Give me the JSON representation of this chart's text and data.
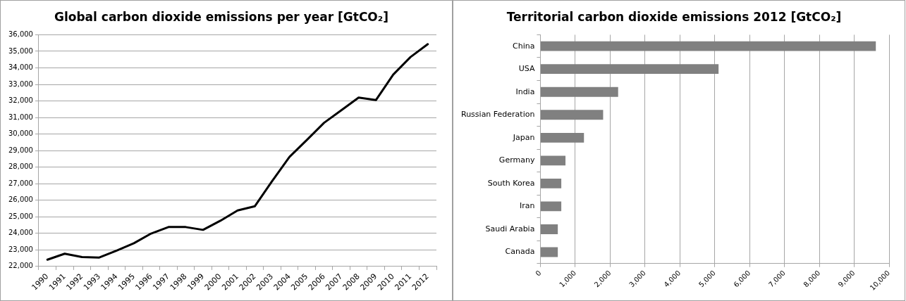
{
  "chart_data": [
    {
      "type": "line",
      "title": "Global carbon dioxide emissions per year [GtCO₂]",
      "categories": [
        "1990",
        "1991",
        "1992",
        "1993",
        "1994",
        "1995",
        "1996",
        "1997",
        "1998",
        "1999",
        "2000",
        "2001",
        "2002",
        "2003",
        "2004",
        "2005",
        "2006",
        "2007",
        "2008",
        "2009",
        "2010",
        "2011",
        "2012"
      ],
      "series": [
        {
          "color": "#000000",
          "values": [
            22410,
            22770,
            22570,
            22540,
            22960,
            23400,
            23990,
            24380,
            24380,
            24210,
            24760,
            25380,
            25640,
            27160,
            28620,
            29640,
            30680,
            31440,
            32200,
            32050,
            33590,
            34650,
            35430
          ]
        }
      ],
      "ylim": [
        22000,
        36000
      ],
      "yticks": [
        {
          "value": 22000,
          "label": "22,000"
        },
        {
          "value": 23000,
          "label": "23,000"
        },
        {
          "value": 24000,
          "label": "24,000"
        },
        {
          "value": 25000,
          "label": "25,000"
        },
        {
          "value": 26000,
          "label": "26,000"
        },
        {
          "value": 27000,
          "label": "27,000"
        },
        {
          "value": 28000,
          "label": "28,000"
        },
        {
          "value": 29000,
          "label": "29,000"
        },
        {
          "value": 30000,
          "label": "30,000"
        },
        {
          "value": 31000,
          "label": "31,000"
        },
        {
          "value": 32000,
          "label": "32,000"
        },
        {
          "value": 33000,
          "label": "33,000"
        },
        {
          "value": 34000,
          "label": "34,000"
        },
        {
          "value": 35000,
          "label": "35,000"
        },
        {
          "value": 36000,
          "label": "36,000"
        }
      ],
      "grid": "y",
      "marker": "none",
      "line_style": "solid"
    },
    {
      "type": "bar",
      "orientation": "horizontal",
      "title": "Territorial carbon dioxide emissions 2012 [GtCO₂]",
      "categories": [
        "China",
        "USA",
        "India",
        "Russian Federation",
        "Japan",
        "Germany",
        "South Korea",
        "Iran",
        "Saudi Arabia",
        "Canada"
      ],
      "values": [
        9620,
        5110,
        2230,
        1800,
        1250,
        720,
        600,
        600,
        500,
        500
      ],
      "color": "#808080",
      "xlim": [
        0,
        10000
      ],
      "xticks": [
        0,
        {
          "value": 1000,
          "label": "1,000"
        },
        {
          "value": 2000,
          "label": "2,000"
        },
        {
          "value": 3000,
          "label": "3,000"
        },
        {
          "value": 4000,
          "label": "4,000"
        },
        {
          "value": 5000,
          "label": "5,000"
        },
        {
          "value": 6000,
          "label": "6,000"
        },
        {
          "value": 7000,
          "label": "7,000"
        },
        {
          "value": 8000,
          "label": "8,000"
        },
        {
          "value": 9000,
          "label": "9,000"
        },
        {
          "value": 10000,
          "label": "10,000"
        }
      ],
      "grid": "x"
    }
  ]
}
